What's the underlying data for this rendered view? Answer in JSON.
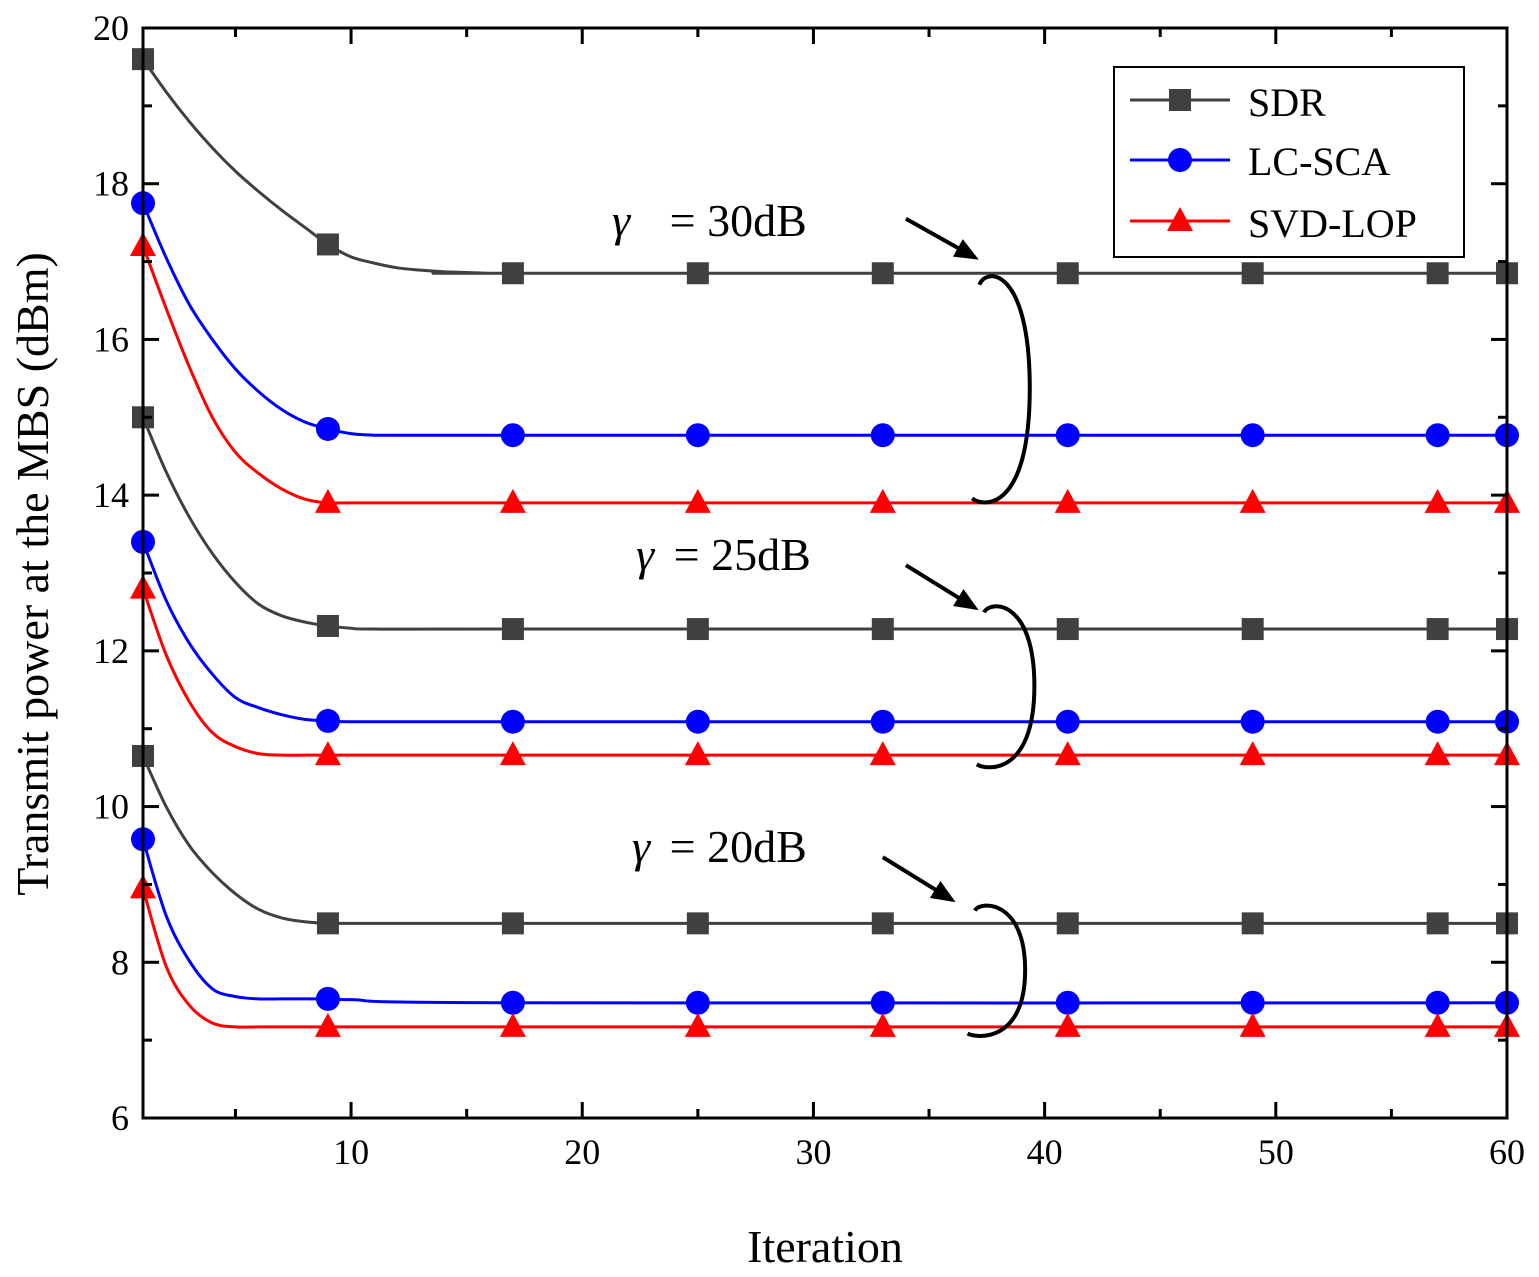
{
  "chart_data": {
    "type": "line",
    "title": "",
    "xlabel": "Iteration",
    "ylabel": "Transmit power at the MBS (dBm)",
    "xlim": [
      1,
      60
    ],
    "ylim": [
      6,
      20
    ],
    "xticks": [
      10,
      20,
      30,
      40,
      50,
      60
    ],
    "xtick_labels": [
      "10",
      "20",
      "30",
      "40",
      "50",
      "60"
    ],
    "yticks": [
      6,
      8,
      10,
      12,
      14,
      16,
      18,
      20
    ],
    "ytick_labels": [
      "6",
      "8",
      "10",
      "12",
      "14",
      "16",
      "18",
      "20"
    ],
    "legend": {
      "placement": "top-right",
      "entries": [
        "SDR",
        "LC-SCA",
        "SVD-LOP"
      ]
    },
    "marker_x": [
      1,
      9,
      17,
      25,
      33,
      41,
      49,
      57,
      60
    ],
    "groups": [
      {
        "label": "γ = 30dB",
        "series": [
          {
            "name": "SDR",
            "color": "#404040",
            "marker": "square",
            "curve_x": [
              1,
              2,
              3,
              4,
              5,
              6,
              7,
              8,
              9,
              10,
              11,
              12,
              13,
              14,
              15,
              16,
              17,
              60
            ],
            "curve_y": [
              19.6,
              19.18,
              18.8,
              18.46,
              18.16,
              17.9,
              17.66,
              17.44,
              17.22,
              17.06,
              16.98,
              16.92,
              16.89,
              16.87,
              16.86,
              16.85,
              16.85,
              16.85
            ],
            "marker_y": [
              19.6,
              17.22,
              16.85,
              16.85,
              16.85,
              16.85,
              16.85,
              16.85,
              16.85
            ]
          },
          {
            "name": "LC-SCA",
            "color": "#0000ff",
            "marker": "circle",
            "curve_x": [
              1,
              2,
              3,
              4,
              5,
              6,
              7,
              8,
              9,
              10,
              11,
              12,
              17,
              60
            ],
            "curve_y": [
              17.75,
              17.05,
              16.45,
              16.0,
              15.62,
              15.33,
              15.1,
              14.94,
              14.85,
              14.79,
              14.77,
              14.77,
              14.77,
              14.77
            ],
            "marker_y": [
              17.75,
              14.85,
              14.77,
              14.77,
              14.77,
              14.77,
              14.77,
              14.77,
              14.77
            ]
          },
          {
            "name": "SVD-LOP",
            "color": "#ff0000",
            "marker": "triangle",
            "curve_x": [
              1,
              2,
              3,
              4,
              5,
              6,
              7,
              8,
              9,
              10,
              17,
              60
            ],
            "curve_y": [
              17.2,
              16.4,
              15.65,
              15.0,
              14.55,
              14.28,
              14.08,
              13.95,
              13.9,
              13.9,
              13.9,
              13.9
            ],
            "marker_y": [
              17.2,
              13.9,
              13.9,
              13.9,
              13.9,
              13.9,
              13.9,
              13.9,
              13.9
            ]
          }
        ]
      },
      {
        "label": "γ = 25dB",
        "series": [
          {
            "name": "SDR",
            "color": "#404040",
            "marker": "square",
            "curve_x": [
              1,
              2,
              3,
              4,
              5,
              6,
              7,
              8,
              9,
              10,
              11,
              17,
              60
            ],
            "curve_y": [
              15.0,
              14.3,
              13.72,
              13.25,
              12.88,
              12.6,
              12.45,
              12.37,
              12.32,
              12.29,
              12.28,
              12.28,
              12.28
            ],
            "marker_y": [
              15.0,
              12.32,
              12.28,
              12.28,
              12.28,
              12.28,
              12.28,
              12.28,
              12.28
            ]
          },
          {
            "name": "LC-SCA",
            "color": "#0000ff",
            "marker": "circle",
            "curve_x": [
              1,
              2,
              3,
              4,
              5,
              6,
              7,
              8,
              9,
              10,
              17,
              60
            ],
            "curve_y": [
              13.4,
              12.65,
              12.1,
              11.7,
              11.4,
              11.27,
              11.18,
              11.12,
              11.1,
              11.09,
              11.09,
              11.09
            ],
            "marker_y": [
              13.4,
              11.1,
              11.09,
              11.09,
              11.09,
              11.09,
              11.09,
              11.09,
              11.09
            ]
          },
          {
            "name": "SVD-LOP",
            "color": "#ff0000",
            "marker": "triangle",
            "curve_x": [
              1,
              2,
              3,
              4,
              5,
              6,
              7,
              8,
              9,
              17,
              60
            ],
            "curve_y": [
              12.8,
              11.95,
              11.35,
              10.95,
              10.77,
              10.68,
              10.66,
              10.66,
              10.66,
              10.66,
              10.66
            ],
            "marker_y": [
              12.8,
              10.66,
              10.66,
              10.66,
              10.66,
              10.66,
              10.66,
              10.66,
              10.66
            ]
          }
        ]
      },
      {
        "label": "γ = 20dB",
        "series": [
          {
            "name": "SDR",
            "color": "#404040",
            "marker": "square",
            "curve_x": [
              1,
              2,
              3,
              4,
              5,
              6,
              7,
              8,
              9,
              10,
              17,
              60
            ],
            "curve_y": [
              10.65,
              10.0,
              9.5,
              9.15,
              8.88,
              8.68,
              8.57,
              8.52,
              8.5,
              8.5,
              8.5,
              8.5
            ],
            "marker_y": [
              10.65,
              8.5,
              8.5,
              8.5,
              8.5,
              8.5,
              8.5,
              8.5,
              8.5
            ]
          },
          {
            "name": "LC-SCA",
            "color": "#0000ff",
            "marker": "circle",
            "curve_x": [
              1,
              2,
              3,
              4,
              5,
              6,
              7,
              8,
              9,
              10,
              17,
              60
            ],
            "curve_y": [
              9.58,
              8.6,
              8.02,
              7.66,
              7.56,
              7.53,
              7.53,
              7.53,
              7.53,
              7.52,
              7.48,
              7.48
            ],
            "marker_y": [
              9.58,
              7.53,
              7.48,
              7.48,
              7.48,
              7.48,
              7.48,
              7.48,
              7.48
            ]
          },
          {
            "name": "SVD-LOP",
            "color": "#ff0000",
            "marker": "triangle",
            "curve_x": [
              1,
              2,
              3,
              4,
              5,
              6,
              7,
              9,
              17,
              60
            ],
            "curve_y": [
              8.95,
              7.95,
              7.45,
              7.22,
              7.17,
              7.17,
              7.17,
              7.17,
              7.17,
              7.17
            ],
            "marker_y": [
              8.95,
              7.17,
              7.17,
              7.17,
              7.17,
              7.17,
              7.17,
              7.17,
              7.17
            ]
          }
        ]
      }
    ],
    "annotations": [
      {
        "text_prefix": "γ",
        "text_value": " = 30dB",
        "bracket_y": [
          13.9,
          16.85
        ],
        "arrow_tail": [
          34,
          17.55
        ],
        "arrow_head": [
          37,
          17.05
        ],
        "label_at": [
          33.5,
          17.65
        ],
        "ellipse_x": 37.8
      },
      {
        "text_prefix": "γ",
        "text_value": " = 25dB",
        "bracket_y": [
          10.5,
          12.6
        ],
        "arrow_tail": [
          34,
          13.1
        ],
        "arrow_head": [
          37,
          12.55
        ],
        "label_at": [
          33.5,
          13.2
        ],
        "ellipse_x": 38.0
      },
      {
        "text_prefix": "γ",
        "text_value": " = 20dB",
        "bracket_y": [
          7.05,
          8.75
        ],
        "arrow_tail": [
          33,
          9.35
        ],
        "arrow_head": [
          36,
          8.8
        ],
        "label_at": [
          33.5,
          9.45
        ],
        "ellipse_x": 37.6
      }
    ]
  }
}
